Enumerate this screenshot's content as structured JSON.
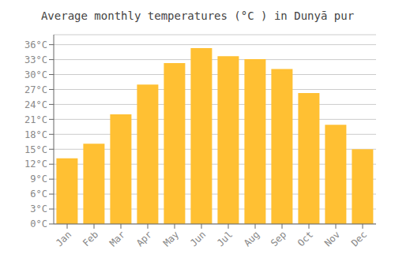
{
  "chart_data": {
    "type": "bar",
    "title": "Average monthly temperatures (°C ) in Dunyā pur",
    "categories": [
      "Jan",
      "Feb",
      "Mar",
      "Apr",
      "May",
      "Jun",
      "Jul",
      "Aug",
      "Sep",
      "Oct",
      "Nov",
      "Dec"
    ],
    "values": [
      13.2,
      16.1,
      22.0,
      28.0,
      32.3,
      35.3,
      33.7,
      33.1,
      31.1,
      26.3,
      19.9,
      15.0
    ],
    "color": "#FFC033",
    "ylim": [
      0,
      38
    ],
    "yticks": [
      {
        "value": 0,
        "label": "0°C"
      },
      {
        "value": 3,
        "label": "3°C"
      },
      {
        "value": 6,
        "label": "6°C"
      },
      {
        "value": 9,
        "label": "9°C"
      },
      {
        "value": 12,
        "label": "12°C"
      },
      {
        "value": 15,
        "label": "15°C"
      },
      {
        "value": 18,
        "label": "18°C"
      },
      {
        "value": 21,
        "label": "21°C"
      },
      {
        "value": 24,
        "label": "24°C"
      },
      {
        "value": 27,
        "label": "27°C"
      },
      {
        "value": 30,
        "label": "30°C"
      },
      {
        "value": 33,
        "label": "33°C"
      },
      {
        "value": 36,
        "label": "36°C"
      }
    ],
    "grid": true
  }
}
